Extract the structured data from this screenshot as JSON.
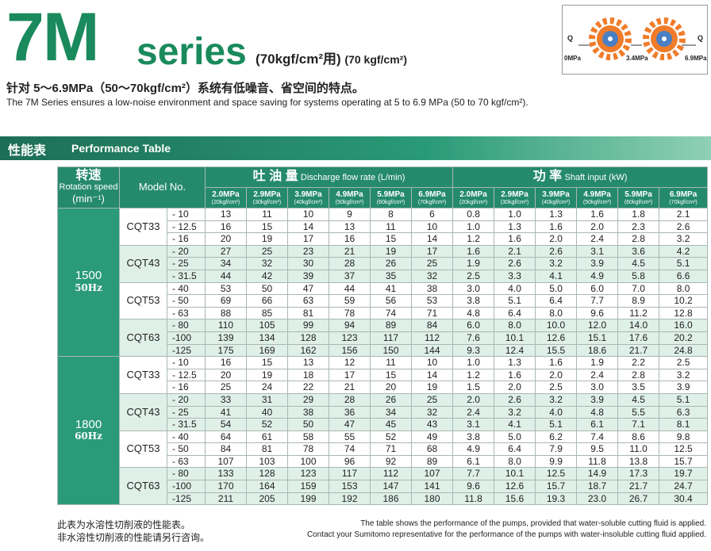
{
  "header": {
    "title_main": "7M",
    "title_series": "series",
    "title_pressure_zh": "(70kgf/cm²用)",
    "title_pressure_en": "(70 kgf/cm²)",
    "subtitle_zh": "针对 5～6.9MPa（50～70kgf/cm²）系统有低噪音、省空间的特点。",
    "subtitle_en": "The 7M Series ensures a low-noise environment and space saving for systems operating at 5  to 6.9 MPa  (50 to 70 kgf/cm²)."
  },
  "diagram": {
    "q_left": "Q",
    "q_right": "Q",
    "p0": "0MPa",
    "p1": "3.4MPa",
    "p2": "6.9MPa",
    "gear_color": "#f07c2a",
    "center_color": "#4a7fc4"
  },
  "band": {
    "title_zh": "性能表",
    "title_en": "Performance Table"
  },
  "table": {
    "speed_zh": "转速",
    "speed_en": "Rotation speed",
    "speed_unit": "(min⁻¹)",
    "model_header": "Model No.",
    "flow_zh": "吐 油 量",
    "flow_en": "Discharge flow rate (L/min)",
    "power_zh": "功  率",
    "power_en": "Shaft input (kW)",
    "pressures": [
      {
        "mpa": "2.0MPa",
        "kgf": "(20kgf/cm²)"
      },
      {
        "mpa": "2.9MPa",
        "kgf": "(30kgf/cm²)"
      },
      {
        "mpa": "3.9MPa",
        "kgf": "(40kgf/cm²)"
      },
      {
        "mpa": "4.9MPa",
        "kgf": "(50kgf/cm²)"
      },
      {
        "mpa": "5.9MPa",
        "kgf": "(60kgf/cm²)"
      },
      {
        "mpa": "6.9MPa",
        "kgf": "(70kgf/cm²)"
      }
    ],
    "speeds": [
      {
        "rpm": "1500",
        "hz": "50Hz",
        "models": [
          {
            "name": "CQT33",
            "rows": [
              {
                "v": "- 10",
                "flow": [
                  "13",
                  "11",
                  "10",
                  "9",
                  "8",
                  "6"
                ],
                "power": [
                  "0.8",
                  "1.0",
                  "1.3",
                  "1.6",
                  "1.8",
                  "2.1"
                ]
              },
              {
                "v": "- 12.5",
                "flow": [
                  "16",
                  "15",
                  "14",
                  "13",
                  "11",
                  "10"
                ],
                "power": [
                  "1.0",
                  "1.3",
                  "1.6",
                  "2.0",
                  "2.3",
                  "2.6"
                ]
              },
              {
                "v": "- 16",
                "flow": [
                  "20",
                  "19",
                  "17",
                  "16",
                  "15",
                  "14"
                ],
                "power": [
                  "1.2",
                  "1.6",
                  "2.0",
                  "2.4",
                  "2.8",
                  "3.2"
                ]
              }
            ]
          },
          {
            "name": "CQT43",
            "rows": [
              {
                "v": "- 20",
                "flow": [
                  "27",
                  "25",
                  "23",
                  "21",
                  "19",
                  "17"
                ],
                "power": [
                  "1.6",
                  "2.1",
                  "2.6",
                  "3.1",
                  "3.6",
                  "4.2"
                ]
              },
              {
                "v": "- 25",
                "flow": [
                  "34",
                  "32",
                  "30",
                  "28",
                  "26",
                  "25"
                ],
                "power": [
                  "1.9",
                  "2.6",
                  "3.2",
                  "3.9",
                  "4.5",
                  "5.1"
                ]
              },
              {
                "v": "- 31.5",
                "flow": [
                  "44",
                  "42",
                  "39",
                  "37",
                  "35",
                  "32"
                ],
                "power": [
                  "2.5",
                  "3.3",
                  "4.1",
                  "4.9",
                  "5.8",
                  "6.6"
                ]
              }
            ]
          },
          {
            "name": "CQT53",
            "rows": [
              {
                "v": "- 40",
                "flow": [
                  "53",
                  "50",
                  "47",
                  "44",
                  "41",
                  "38"
                ],
                "power": [
                  "3.0",
                  "4.0",
                  "5.0",
                  "6.0",
                  "7.0",
                  "8.0"
                ]
              },
              {
                "v": "- 50",
                "flow": [
                  "69",
                  "66",
                  "63",
                  "59",
                  "56",
                  "53"
                ],
                "power": [
                  "3.8",
                  "5.1",
                  "6.4",
                  "7.7",
                  "8.9",
                  "10.2"
                ]
              },
              {
                "v": "- 63",
                "flow": [
                  "88",
                  "85",
                  "81",
                  "78",
                  "74",
                  "71"
                ],
                "power": [
                  "4.8",
                  "6.4",
                  "8.0",
                  "9.6",
                  "11.2",
                  "12.8"
                ]
              }
            ]
          },
          {
            "name": "CQT63",
            "rows": [
              {
                "v": "- 80",
                "flow": [
                  "110",
                  "105",
                  "99",
                  "94",
                  "89",
                  "84"
                ],
                "power": [
                  "6.0",
                  "8.0",
                  "10.0",
                  "12.0",
                  "14.0",
                  "16.0"
                ]
              },
              {
                "v": "-100",
                "flow": [
                  "139",
                  "134",
                  "128",
                  "123",
                  "117",
                  "112"
                ],
                "power": [
                  "7.6",
                  "10.1",
                  "12.6",
                  "15.1",
                  "17.6",
                  "20.2"
                ]
              },
              {
                "v": "-125",
                "flow": [
                  "175",
                  "169",
                  "162",
                  "156",
                  "150",
                  "144"
                ],
                "power": [
                  "9.3",
                  "12.4",
                  "15.5",
                  "18.6",
                  "21.7",
                  "24.8"
                ]
              }
            ]
          }
        ]
      },
      {
        "rpm": "1800",
        "hz": "60Hz",
        "models": [
          {
            "name": "CQT33",
            "rows": [
              {
                "v": "- 10",
                "flow": [
                  "16",
                  "15",
                  "13",
                  "12",
                  "11",
                  "10"
                ],
                "power": [
                  "1.0",
                  "1.3",
                  "1.6",
                  "1.9",
                  "2.2",
                  "2.5"
                ]
              },
              {
                "v": "- 12.5",
                "flow": [
                  "20",
                  "19",
                  "18",
                  "17",
                  "15",
                  "14"
                ],
                "power": [
                  "1.2",
                  "1.6",
                  "2.0",
                  "2.4",
                  "2.8",
                  "3.2"
                ]
              },
              {
                "v": "- 16",
                "flow": [
                  "25",
                  "24",
                  "22",
                  "21",
                  "20",
                  "19"
                ],
                "power": [
                  "1.5",
                  "2.0",
                  "2.5",
                  "3.0",
                  "3.5",
                  "3.9"
                ]
              }
            ]
          },
          {
            "name": "CQT43",
            "rows": [
              {
                "v": "- 20",
                "flow": [
                  "33",
                  "31",
                  "29",
                  "28",
                  "26",
                  "25"
                ],
                "power": [
                  "2.0",
                  "2.6",
                  "3.2",
                  "3.9",
                  "4.5",
                  "5.1"
                ]
              },
              {
                "v": "- 25",
                "flow": [
                  "41",
                  "40",
                  "38",
                  "36",
                  "34",
                  "32"
                ],
                "power": [
                  "2.4",
                  "3.2",
                  "4.0",
                  "4.8",
                  "5.5",
                  "6.3"
                ]
              },
              {
                "v": "- 31.5",
                "flow": [
                  "54",
                  "52",
                  "50",
                  "47",
                  "45",
                  "43"
                ],
                "power": [
                  "3.1",
                  "4.1",
                  "5.1",
                  "6.1",
                  "7.1",
                  "8.1"
                ]
              }
            ]
          },
          {
            "name": "CQT53",
            "rows": [
              {
                "v": "- 40",
                "flow": [
                  "64",
                  "61",
                  "58",
                  "55",
                  "52",
                  "49"
                ],
                "power": [
                  "3.8",
                  "5.0",
                  "6.2",
                  "7.4",
                  "8.6",
                  "9.8"
                ]
              },
              {
                "v": "- 50",
                "flow": [
                  "84",
                  "81",
                  "78",
                  "74",
                  "71",
                  "68"
                ],
                "power": [
                  "4.9",
                  "6.4",
                  "7.9",
                  "9.5",
                  "11.0",
                  "12.5"
                ]
              },
              {
                "v": "- 63",
                "flow": [
                  "107",
                  "103",
                  "100",
                  "96",
                  "92",
                  "89"
                ],
                "power": [
                  "6.1",
                  "8.0",
                  "9.9",
                  "11.8",
                  "13.8",
                  "15.7"
                ]
              }
            ]
          },
          {
            "name": "CQT63",
            "rows": [
              {
                "v": "- 80",
                "flow": [
                  "133",
                  "128",
                  "123",
                  "117",
                  "112",
                  "107"
                ],
                "power": [
                  "7.7",
                  "10.1",
                  "12.5",
                  "14.9",
                  "17.3",
                  "19.7"
                ]
              },
              {
                "v": "-100",
                "flow": [
                  "170",
                  "164",
                  "159",
                  "153",
                  "147",
                  "141"
                ],
                "power": [
                  "9.6",
                  "12.6",
                  "15.7",
                  "18.7",
                  "21.7",
                  "24.7"
                ]
              },
              {
                "v": "-125",
                "flow": [
                  "211",
                  "205",
                  "199",
                  "192",
                  "186",
                  "180"
                ],
                "power": [
                  "11.8",
                  "15.6",
                  "19.3",
                  "23.0",
                  "26.7",
                  "30.4"
                ]
              }
            ]
          }
        ]
      }
    ]
  },
  "notes": {
    "zh_1": "此表为水溶性切削液的性能表。",
    "zh_2": "非水溶性切削液的性能请另行咨询。",
    "en_1": "The table shows the performance of the pumps, provided that water-soluble cutting fluid is applied.",
    "en_2": "Contact your Sumitomo representative for the performance of the pumps with water-insoluble cutting fluid applied."
  }
}
